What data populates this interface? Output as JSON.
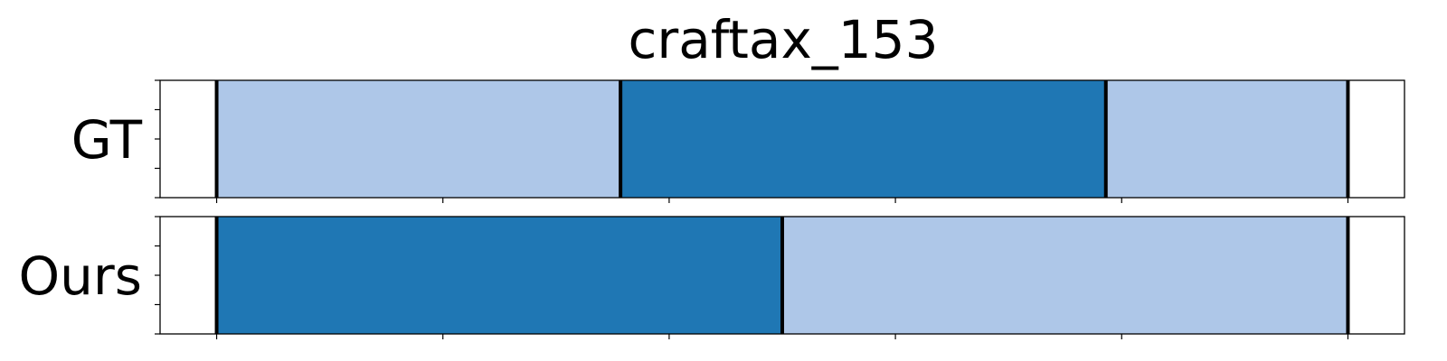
{
  "chart_data": {
    "type": "bar",
    "title": "craftax_153",
    "xlabel": "",
    "ylabel": "",
    "xlim": [
      -0.05,
      1.05
    ],
    "grid": false,
    "legend": "none",
    "colors": {
      "light": "#aec7e8",
      "dark": "#1f77b4",
      "boundary": "#000000"
    },
    "rows": [
      {
        "label": "GT",
        "segments": [
          {
            "start": 0.0,
            "end": 0.357,
            "color": "light"
          },
          {
            "start": 0.357,
            "end": 0.786,
            "color": "dark"
          },
          {
            "start": 0.786,
            "end": 1.0,
            "color": "light"
          }
        ],
        "boundaries": [
          0.0,
          0.357,
          0.786,
          1.0
        ]
      },
      {
        "label": "Ours",
        "segments": [
          {
            "start": 0.0,
            "end": 0.5,
            "color": "dark"
          },
          {
            "start": 0.5,
            "end": 1.0,
            "color": "light"
          }
        ],
        "boundaries": [
          0.0,
          0.5,
          1.0
        ]
      }
    ],
    "x_ticks": [
      0.0,
      0.2,
      0.4,
      0.6,
      0.8,
      1.0
    ]
  }
}
